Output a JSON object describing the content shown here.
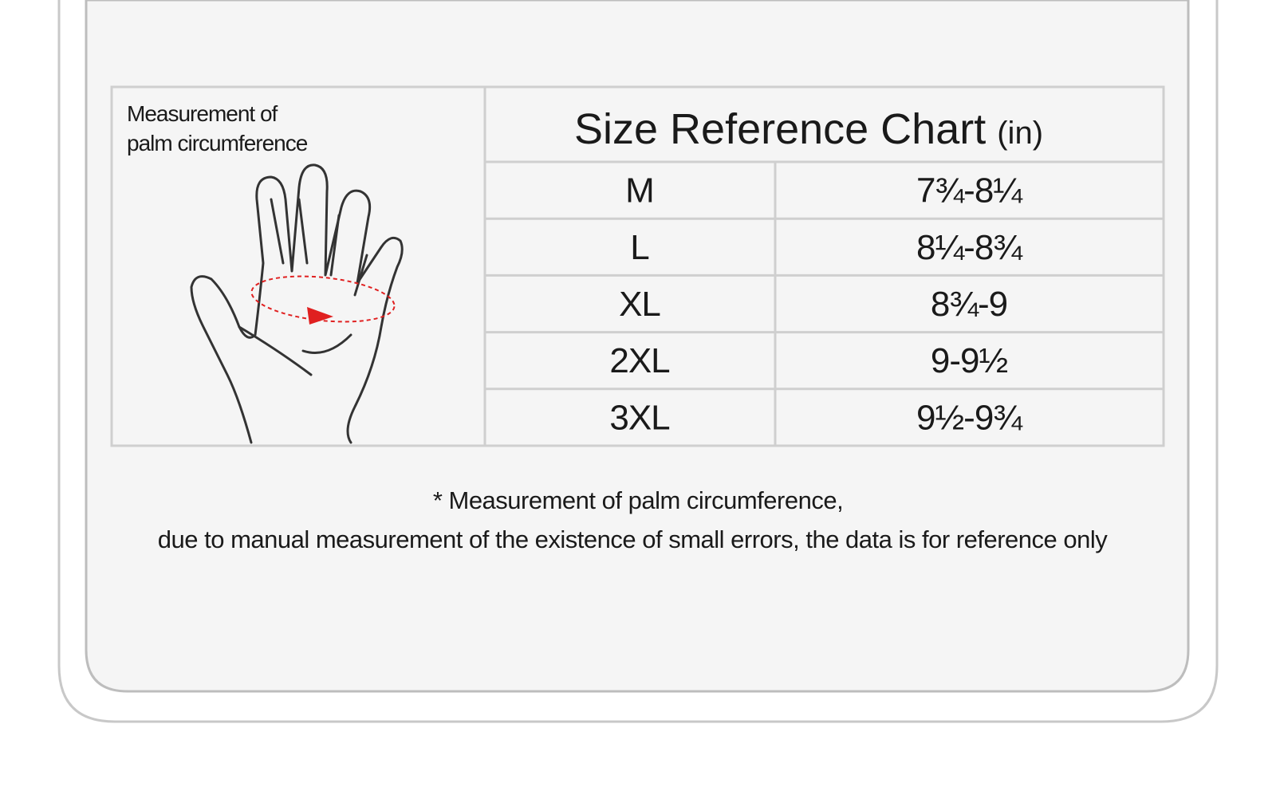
{
  "label": {
    "lines": [
      "Measurement of",
      "palm circumference"
    ]
  },
  "table": {
    "title": "Size Reference Chart",
    "unit": "(in)",
    "rows": [
      [
        "M",
        "7¾-8¼"
      ],
      [
        "L",
        "8¼-8¾"
      ],
      [
        "XL",
        "8¾-9"
      ],
      [
        "2XL",
        "9-9½"
      ],
      [
        "3XL",
        "9½-9¾"
      ]
    ]
  },
  "footnote": [
    "* Measurement of palm circumference,",
    "due to manual measurement of the existence of small errors, the data is for reference only"
  ]
}
